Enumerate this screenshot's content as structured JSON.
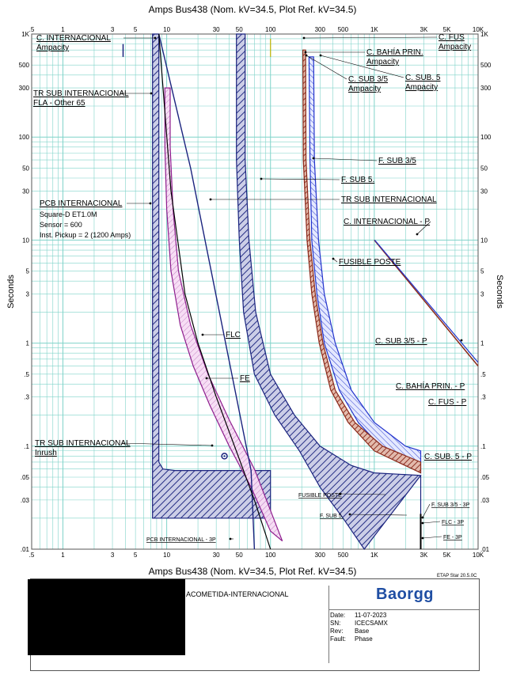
{
  "header": {
    "top_title": "Amps   Bus438 (Nom. kV=34.5, Plot Ref. kV=34.5)",
    "bottom_title": "Amps   Bus438 (Nom. kV=34.5, Plot Ref. kV=34.5)"
  },
  "title_block": {
    "project": "ACOMETIDA-INTERNACIONAL",
    "logo": "Baorgg",
    "software": "ETAP Star 20.5.0C",
    "fields": [
      {
        "key": "Date:",
        "value": "11-07-2023"
      },
      {
        "key": "SN:",
        "value": "ICECSAMX"
      },
      {
        "key": "Rev:",
        "value": "Base"
      },
      {
        "key": "Fault:",
        "value": "Phase"
      }
    ]
  },
  "chart_data": {
    "type": "line",
    "xlabel": "Amps",
    "ylabel": "Seconds",
    "xscale": "log",
    "yscale": "log",
    "xlim": [
      0.5,
      10000
    ],
    "ylim": [
      0.01,
      1000
    ],
    "x_tick_labels": [
      ".5",
      "1",
      "3",
      "5",
      "10",
      "30",
      "50",
      "100",
      "300",
      "500",
      "1K",
      "3K",
      "5K",
      "10K"
    ],
    "y_tick_labels": [
      ".01",
      ".03",
      ".05",
      ".1",
      ".3",
      ".5",
      "1",
      "3",
      "5",
      "10",
      "30",
      "50",
      "100",
      "300",
      "500",
      "1K"
    ],
    "grid": true,
    "colors": {
      "navy": "#1a237e",
      "blue": "#2233cc",
      "purple": "#8e1e8e",
      "pink": "#f1c6ee",
      "brown": "#8b2a1a",
      "grid": "#7fd3c9"
    },
    "series": [
      {
        "name": "PCB INTERNACIONAL",
        "band": true,
        "upper": [
          [
            8.4,
            1000
          ],
          [
            8.4,
            0.07
          ],
          [
            9.2,
            0.06
          ],
          [
            12,
            0.058
          ],
          [
            100,
            0.058
          ],
          [
            100,
            0.02
          ]
        ],
        "lower": [
          [
            7.3,
            1000
          ],
          [
            7.3,
            0.02
          ],
          [
            100,
            0.02
          ]
        ]
      },
      {
        "name": "F. SUB 5.",
        "band": true,
        "upper": [
          [
            57,
            1000
          ],
          [
            57,
            60
          ],
          [
            62,
            10
          ],
          [
            72,
            2
          ],
          [
            100,
            0.5
          ],
          [
            170,
            0.2
          ],
          [
            300,
            0.1
          ],
          [
            600,
            0.065
          ],
          [
            1000,
            0.055
          ],
          [
            2800,
            0.052
          ]
        ],
        "lower": [
          [
            47,
            1000
          ],
          [
            47,
            60
          ],
          [
            50,
            10
          ],
          [
            55,
            2
          ],
          [
            70,
            0.5
          ],
          [
            110,
            0.2
          ],
          [
            190,
            0.09
          ],
          [
            300,
            0.04
          ],
          [
            500,
            0.02
          ],
          [
            800,
            0.01
          ]
        ]
      },
      {
        "name": "FUSIBLE POSTE",
        "band": true,
        "upper": [
          [
            260,
            600
          ],
          [
            265,
            60
          ],
          [
            290,
            10
          ],
          [
            330,
            3
          ],
          [
            420,
            1
          ],
          [
            600,
            0.35
          ],
          [
            1000,
            0.17
          ],
          [
            2000,
            0.1
          ],
          [
            2800,
            0.09
          ]
        ],
        "lower": [
          [
            235,
            600
          ],
          [
            240,
            60
          ],
          [
            250,
            10
          ],
          [
            280,
            3
          ],
          [
            330,
            1
          ],
          [
            460,
            0.35
          ],
          [
            700,
            0.17
          ],
          [
            1400,
            0.08
          ],
          [
            2800,
            0.055
          ]
        ]
      },
      {
        "name": "F. SUB 3/5",
        "band": true,
        "upper": [
          [
            218,
            700
          ],
          [
            220,
            60
          ],
          [
            240,
            10
          ],
          [
            270,
            3
          ],
          [
            320,
            1
          ],
          [
            420,
            0.35
          ],
          [
            650,
            0.17
          ],
          [
            1200,
            0.1
          ],
          [
            2800,
            0.07
          ]
        ],
        "lower": [
          [
            205,
            700
          ],
          [
            207,
            60
          ],
          [
            225,
            10
          ],
          [
            250,
            3
          ],
          [
            295,
            1
          ],
          [
            380,
            0.35
          ],
          [
            560,
            0.17
          ],
          [
            1000,
            0.09
          ],
          [
            2800,
            0.055
          ]
        ]
      },
      {
        "name": "FE",
        "band": true,
        "upper": [
          [
            10.8,
            300
          ],
          [
            10.8,
            80
          ],
          [
            11.5,
            20
          ],
          [
            13,
            5
          ],
          [
            17,
            1.5
          ],
          [
            25,
            0.5
          ],
          [
            40,
            0.18
          ],
          [
            70,
            0.06
          ],
          [
            130,
            0.012
          ]
        ],
        "lower": [
          [
            9.6,
            300
          ],
          [
            9.6,
            80
          ],
          [
            10,
            20
          ],
          [
            11,
            5
          ],
          [
            13.5,
            1.5
          ],
          [
            18,
            0.6
          ],
          [
            26,
            0.25
          ],
          [
            40,
            0.1
          ],
          [
            65,
            0.04
          ],
          [
            100,
            0.015
          ]
        ]
      },
      {
        "name": "TR SUB INTERNACIONAL",
        "points": [
          [
            8.4,
            1000
          ],
          [
            17,
            50
          ],
          [
            65,
            0.058
          ],
          [
            70,
            0.01
          ]
        ]
      },
      {
        "name": "FLC",
        "points": [
          [
            8.4,
            1000
          ],
          [
            11,
            30
          ],
          [
            15,
            3
          ],
          [
            20,
            1
          ],
          [
            30,
            0.3
          ],
          [
            45,
            0.1
          ],
          [
            70,
            0.03
          ],
          [
            100,
            0.01
          ]
        ]
      },
      {
        "name": "C. INTERNACIONAL - P",
        "points": [
          [
            1000,
            10
          ],
          [
            10000,
            0.6
          ]
        ]
      },
      {
        "name": "C. SUB 3/5 - P",
        "points": [
          [
            1010,
            10
          ],
          [
            10000,
            0.65
          ]
        ]
      }
    ],
    "markers": [
      {
        "name": "Inrush",
        "x": 36,
        "y": 0.08
      },
      {
        "name": "Ampacity",
        "x": 3.8,
        "y": 650
      },
      {
        "name": "C. INTERNACIONAL",
        "x": 100,
        "y": 800
      }
    ],
    "annotations": [
      {
        "label": "C. INTERNACIONAL",
        "sub": "Ampacity"
      },
      {
        "label": "TR SUB INTERNACIONAL",
        "sub": "FLA - Other 65"
      },
      {
        "label": "PCB INTERNACIONAL",
        "sub": ""
      },
      {
        "label": "Square-D  ET1.0M",
        "sub": ""
      },
      {
        "label": "Sensor = 600",
        "sub": ""
      },
      {
        "label": "Inst. Pickup = 2 (1200 Amps)",
        "sub": ""
      },
      {
        "label": "TR SUB INTERNACIONAL",
        "sub": "Inrush"
      },
      {
        "label": "C. FUS",
        "sub": "Ampacity"
      },
      {
        "label": "C. BAHÍA PRIN.",
        "sub": "Ampacity"
      },
      {
        "label": "C. SUB 3/5",
        "sub": "Ampacity"
      },
      {
        "label": "C. SUB. 5",
        "sub": "Ampacity"
      },
      {
        "label": "F. SUB 3/5",
        "sub": ""
      },
      {
        "label": "F. SUB 5.",
        "sub": ""
      },
      {
        "label": "TR SUB INTERNACIONAL",
        "sub": ""
      },
      {
        "label": "C. INTERNACIONAL - P",
        "sub": ""
      },
      {
        "label": "FUSIBLE POSTE",
        "sub": ""
      },
      {
        "label": "FLC",
        "sub": ""
      },
      {
        "label": "FE",
        "sub": ""
      },
      {
        "label": "C. SUB 3/5 - P",
        "sub": ""
      },
      {
        "label": "C. BAHÍA PRIN. - P",
        "sub": ""
      },
      {
        "label": "C. FUS - P",
        "sub": ""
      },
      {
        "label": "C. SUB. 5 - P",
        "sub": ""
      },
      {
        "label": "FUSIBLE POSTE",
        "sub": ""
      },
      {
        "label": "F. SUB 5.",
        "sub": ""
      },
      {
        "label": "F. SUB 3/5 - 3P",
        "sub": ""
      },
      {
        "label": "FLC - 3P",
        "sub": ""
      },
      {
        "label": "FE - 3P",
        "sub": ""
      },
      {
        "label": "PCB INTERNACIONAL - 3P",
        "sub": ""
      }
    ]
  }
}
